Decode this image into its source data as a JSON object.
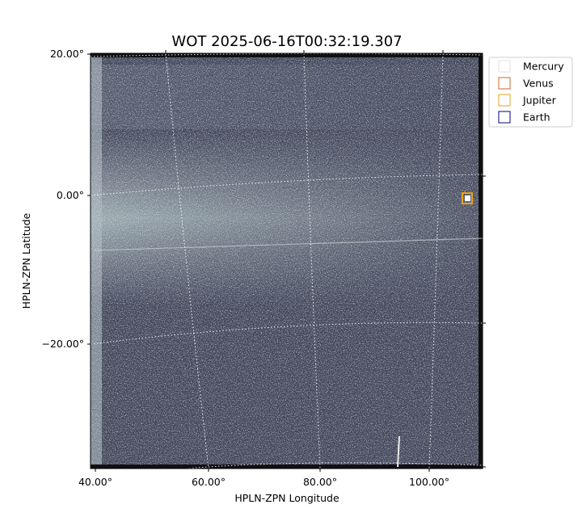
{
  "title": "WOT 2025-06-16T00:32:19.307",
  "x_axis": {
    "label": "HPLN-ZPN Longitude",
    "ticks": [
      "40.00°",
      "60.00°",
      "80.00°",
      "100.00°"
    ]
  },
  "y_axis": {
    "label": "HPLN-ZPN Latitude",
    "ticks": [
      "20.00°",
      "0.00°",
      "−20.00°"
    ]
  },
  "legend": [
    {
      "name": "Mercury",
      "color": "#e0e0e0"
    },
    {
      "name": "Venus",
      "color": "#d2691e"
    },
    {
      "name": "Jupiter",
      "color": "#e8a317"
    },
    {
      "name": "Earth",
      "color": "#000080"
    }
  ]
}
